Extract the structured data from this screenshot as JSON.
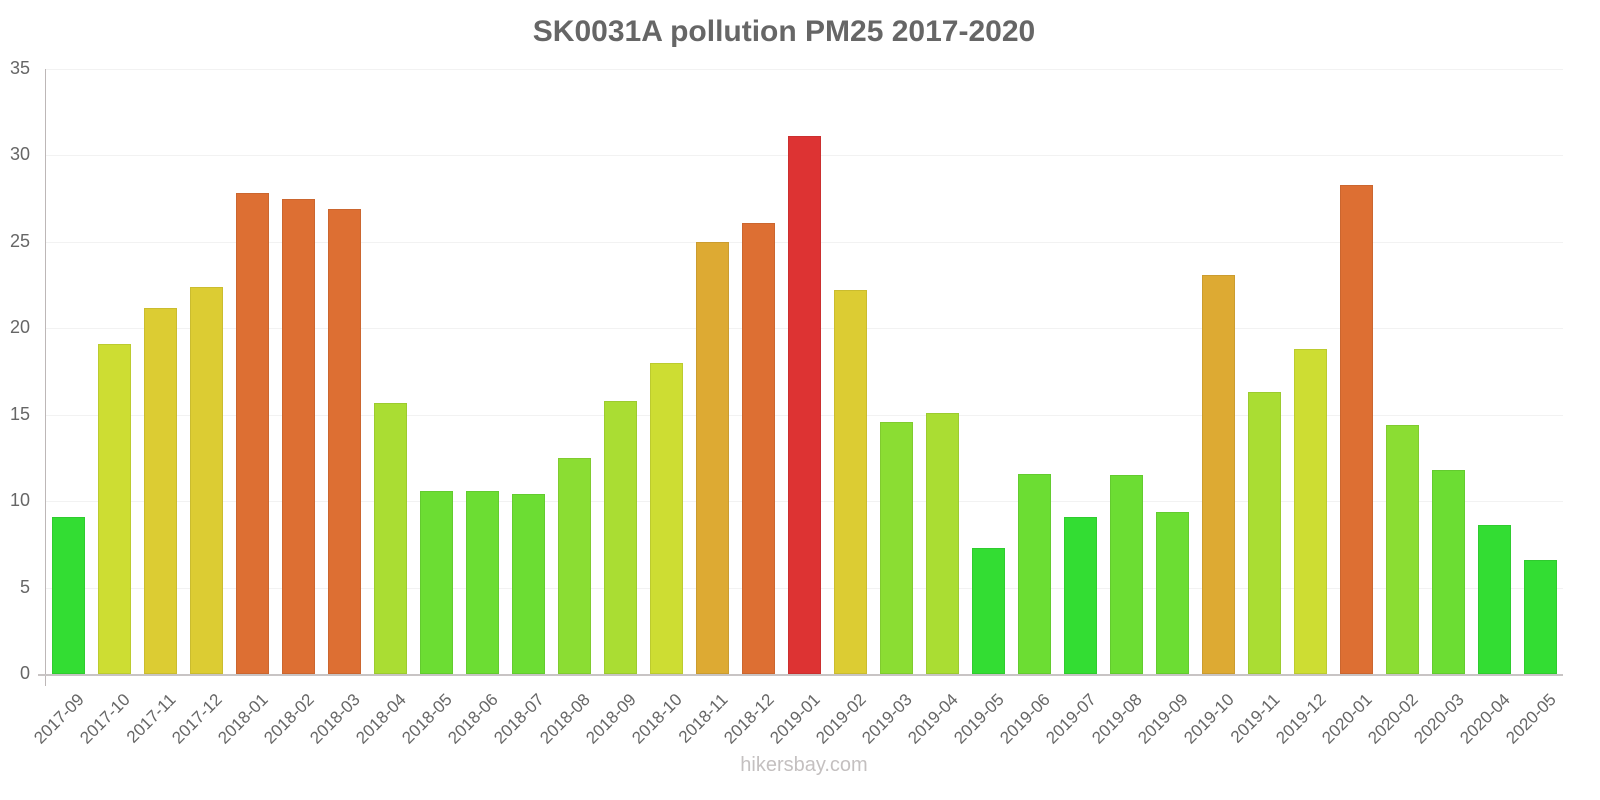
{
  "title": "SK0031A pollution PM25 2017-2020",
  "watermark": "hikersbay.com",
  "chart_data": {
    "type": "bar",
    "title": "SK0031A pollution PM25 2017-2020",
    "xlabel": "",
    "ylabel": "",
    "ylim": [
      0,
      35
    ],
    "yticks": [
      0,
      5,
      10,
      15,
      20,
      25,
      30,
      35
    ],
    "grid": true,
    "legend": null,
    "categories": [
      "2017-09",
      "2017-10",
      "2017-11",
      "2017-12",
      "2018-01",
      "2018-02",
      "2018-03",
      "2018-04",
      "2018-05",
      "2018-06",
      "2018-07",
      "2018-08",
      "2018-09",
      "2018-10",
      "2018-11",
      "2018-12",
      "2019-01",
      "2019-02",
      "2019-03",
      "2019-04",
      "2019-05",
      "2019-06",
      "2019-07",
      "2019-08",
      "2019-09",
      "2019-10",
      "2019-11",
      "2019-12",
      "2020-01",
      "2020-02",
      "2020-03",
      "2020-04",
      "2020-05"
    ],
    "values": [
      9.1,
      19.1,
      21.2,
      22.4,
      27.8,
      27.5,
      26.9,
      15.7,
      10.6,
      10.6,
      10.4,
      12.5,
      15.8,
      18.0,
      25.0,
      26.1,
      31.1,
      22.2,
      14.6,
      15.1,
      7.3,
      11.6,
      9.1,
      11.5,
      9.4,
      23.1,
      16.3,
      18.8,
      28.3,
      14.4,
      11.8,
      8.6,
      6.6
    ],
    "colors": [
      "#33dd33",
      "#cddd33",
      "#dccc33",
      "#dccc33",
      "#dd6f33",
      "#dd6f33",
      "#dd6f33",
      "#aadd33",
      "#6cdd33",
      "#6cdd33",
      "#6cdd33",
      "#8bdd33",
      "#aadd33",
      "#cddd33",
      "#ddaa33",
      "#dd6f33",
      "#dd3333",
      "#dccc33",
      "#8bdd33",
      "#aadd33",
      "#33dd33",
      "#6cdd33",
      "#33dd33",
      "#6cdd33",
      "#6cdd33",
      "#ddaa33",
      "#aadd33",
      "#cddd33",
      "#dd6f33",
      "#8bdd33",
      "#6cdd33",
      "#33dd33",
      "#33dd33"
    ]
  }
}
